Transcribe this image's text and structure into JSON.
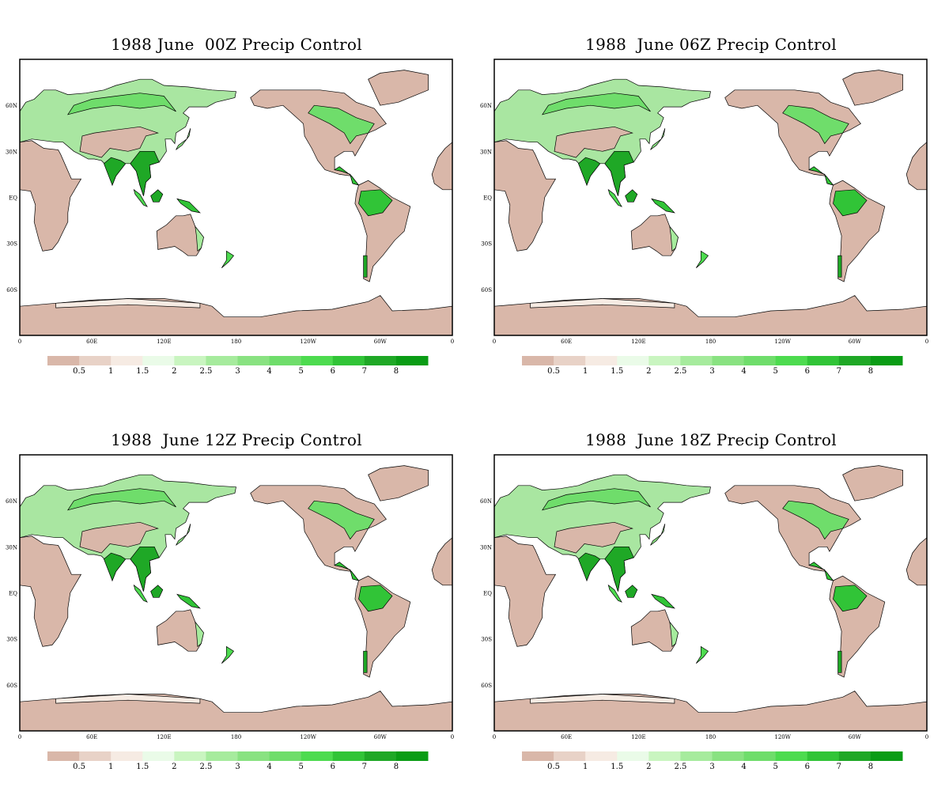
{
  "panels": [
    {
      "title": "1988 June  00Z Precip Control"
    },
    {
      "title": "1988  June 06Z Precip Control"
    },
    {
      "title": "1988  June 12Z Precip Control"
    },
    {
      "title": "1988  June 18Z Precip Control"
    }
  ],
  "lon_labels": [
    "0",
    "60E",
    "120E",
    "180",
    "120W",
    "60W",
    "0"
  ],
  "lat_labels": [
    "60N",
    "30N",
    "EQ",
    "30S",
    "60S"
  ],
  "colorbar": {
    "colors": [
      "#d9b7a9",
      "#e8d2c7",
      "#f6ebe3",
      "#eafbe8",
      "#c9f5c0",
      "#a6eb9d",
      "#89e281",
      "#6fdd6b",
      "#4ddb4f",
      "#31c437",
      "#1fa826",
      "#0a9c15"
    ],
    "labels": [
      "0.5",
      "1",
      "1.5",
      "2",
      "2.5",
      "3",
      "4",
      "5",
      "6",
      "7",
      "8"
    ]
  },
  "colors": {
    "ocean": "#ffffff",
    "coast": "#000000",
    "dry": "#d9b7a9",
    "wet": "#1fa826"
  }
}
